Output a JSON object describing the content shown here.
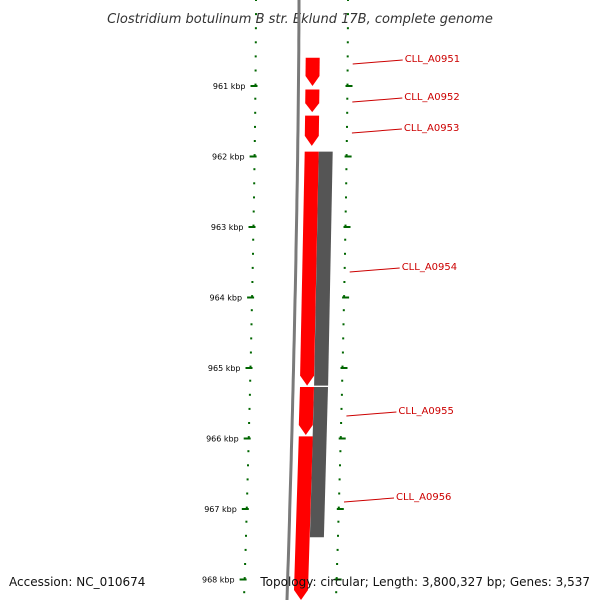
{
  "title": "Clostridium botulinum B str. Eklund 17B, complete genome",
  "footer": {
    "accession": "Accession: NC_010674",
    "topology": "Topology: circular; Length: 3,800,327 bp; Genes: 3,537"
  },
  "colors": {
    "gene_forward": "#ff0000",
    "gene_reverse": "#555555",
    "backbone": "#7a7a7a",
    "ticks": "#006600",
    "label": "#cc0000"
  },
  "ticks": [
    {
      "label": "961 kbp",
      "kbp": 961
    },
    {
      "label": "962 kbp",
      "kbp": 962
    },
    {
      "label": "963 kbp",
      "kbp": 963
    },
    {
      "label": "964 kbp",
      "kbp": 964
    },
    {
      "label": "965 kbp",
      "kbp": 965
    },
    {
      "label": "966 kbp",
      "kbp": 966
    },
    {
      "label": "967 kbp",
      "kbp": 967
    },
    {
      "label": "968 kbp",
      "kbp": 968
    }
  ],
  "genes": [
    {
      "name": "CLL_A0951",
      "start_kbp": 960.6,
      "end_kbp": 961.0,
      "strand": "+"
    },
    {
      "name": "CLL_A0952",
      "start_kbp": 961.05,
      "end_kbp": 961.37,
      "strand": "+"
    },
    {
      "name": "CLL_A0953",
      "start_kbp": 961.42,
      "end_kbp": 961.85,
      "strand": "+"
    },
    {
      "name": "CLL_A0954",
      "start_kbp": 961.93,
      "end_kbp": 965.25,
      "strand": "+"
    },
    {
      "name": "CLL_A0955",
      "start_kbp": 965.27,
      "end_kbp": 965.95,
      "strand": "+"
    },
    {
      "name": "CLL_A0956",
      "start_kbp": 965.97,
      "end_kbp": 968.3,
      "strand": "+"
    }
  ],
  "reverse_features": [
    {
      "start_kbp": 961.93,
      "end_kbp": 965.25
    },
    {
      "start_kbp": 965.27,
      "end_kbp": 967.4
    }
  ]
}
